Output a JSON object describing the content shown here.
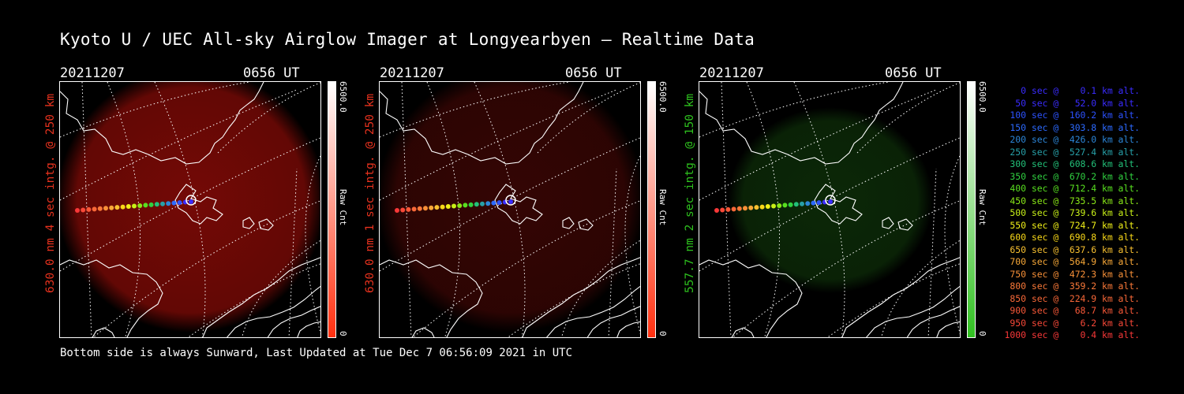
{
  "title": "Kyoto U / UEC All-sky Airglow Imager at Longyearbyen — Realtime Data",
  "footer": "Bottom side is always Sunward, Last Updated at Tue Dec  7 06:56:09 2021 in UTC",
  "panels": [
    {
      "date": "20211207",
      "time": "0656 UT",
      "side_label": "630.0 nm 4 sec intg. @ 250 km",
      "label_color": "#e8321e",
      "cbar_max": "6500.0",
      "cbar_min": "0",
      "cbar_unit": "Raw Cnt",
      "glow_color": "#7a0a06",
      "glow_opacity": 0.95,
      "cbar_top": "#ffffff",
      "cbar_bottom": "#ff3010"
    },
    {
      "date": "20211207",
      "time": "0656 UT",
      "side_label": "630.0 nm 1 sec intg. @ 250 km",
      "label_color": "#e8321e",
      "cbar_max": "6500.0",
      "cbar_min": "0",
      "cbar_unit": "Raw Cnt",
      "glow_color": "#3a0604",
      "glow_opacity": 0.9,
      "cbar_top": "#ffffff",
      "cbar_bottom": "#ff3010"
    },
    {
      "date": "20211207",
      "time": "0656 UT",
      "side_label": "557.7 nm 2 sec intg. @ 150 km",
      "label_color": "#2ec21e",
      "cbar_max": "6500.0",
      "cbar_min": "0",
      "cbar_unit": "Raw Cnt",
      "glow_color": "#0c2a08",
      "glow_opacity": 0.95,
      "cbar_top": "#ffffff",
      "cbar_bottom": "#30c020"
    }
  ],
  "legend": [
    {
      "text": "   0 sec @    0.1 km alt.",
      "color": "#3a2cff"
    },
    {
      "text": "  50 sec @   52.0 km alt.",
      "color": "#3a2cff"
    },
    {
      "text": " 100 sec @  160.2 km alt.",
      "color": "#2c52ff"
    },
    {
      "text": " 150 sec @  303.8 km alt.",
      "color": "#2c6aff"
    },
    {
      "text": " 200 sec @  426.0 km alt.",
      "color": "#2c86d8"
    },
    {
      "text": " 250 sec @  527.4 km alt.",
      "color": "#27a0a8"
    },
    {
      "text": " 300 sec @  608.6 km alt.",
      "color": "#22c078"
    },
    {
      "text": " 350 sec @  670.2 km alt.",
      "color": "#30d040"
    },
    {
      "text": " 400 sec @  712.4 km alt.",
      "color": "#58e020"
    },
    {
      "text": " 450 sec @  735.5 km alt.",
      "color": "#8ae818"
    },
    {
      "text": " 500 sec @  739.6 km alt.",
      "color": "#c8f018"
    },
    {
      "text": " 550 sec @  724.7 km alt.",
      "color": "#f0f018"
    },
    {
      "text": " 600 sec @  690.8 km alt.",
      "color": "#f8d818"
    },
    {
      "text": " 650 sec @  637.6 km alt.",
      "color": "#f8c030"
    },
    {
      "text": " 700 sec @  564.9 km alt.",
      "color": "#f8a838"
    },
    {
      "text": " 750 sec @  472.3 km alt.",
      "color": "#f89038"
    },
    {
      "text": " 800 sec @  359.2 km alt.",
      "color": "#f87838"
    },
    {
      "text": " 850 sec @  224.9 km alt.",
      "color": "#f86838"
    },
    {
      "text": " 900 sec @   68.7 km alt.",
      "color": "#f85838"
    },
    {
      "text": " 950 sec @    6.2 km alt.",
      "color": "#f84838"
    },
    {
      "text": "1000 sec @    0.4 km alt.",
      "color": "#f83838"
    }
  ]
}
